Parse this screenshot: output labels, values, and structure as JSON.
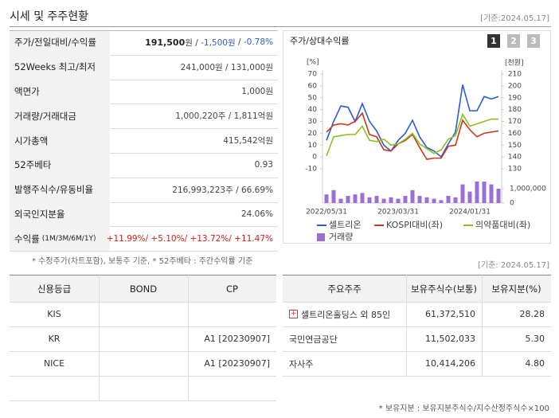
{
  "header": {
    "title": "시세 및 주주현황",
    "date": "[기준:2024.05.17]"
  },
  "summary": {
    "rows": [
      {
        "label": "주가/전일대비/수익률",
        "value": [
          "191,500",
          "원 / ",
          "-1,500원",
          " / ",
          "-0.78%"
        ]
      },
      {
        "label": "52Weeks 최고/최저",
        "value": "241,000원 / 131,000원"
      },
      {
        "label": "액면가",
        "value": "1,000원"
      },
      {
        "label": "거래량/거래대금",
        "value": "1,000,220주 / 1,811억원"
      },
      {
        "label": "시가총액",
        "value": "415,542억원"
      },
      {
        "label": "52주베타",
        "value": "0.93"
      },
      {
        "label": "발행주식수/유동비율",
        "value": "216,993,223주 / 66.69%"
      },
      {
        "label": "외국인지분율",
        "value": "24.06%"
      },
      {
        "label": [
          "수익률",
          "(1M/3M/6M/1Y)"
        ],
        "value": "+11.99%/ +5.10%/ +13.72%/ +11.47%"
      }
    ],
    "note": "* 수정주가(차트포함), 보통주 기준, * 52주베타 : 주간수익률 기준"
  },
  "chart_data": {
    "type": "line",
    "title": "주가/상대수익률",
    "tabs": [
      "1",
      "2",
      "3"
    ],
    "ylabel": "[%]",
    "y2label": "[천원]",
    "categories": [
      "2022/05/31",
      null,
      null,
      null,
      null,
      null,
      null,
      null,
      null,
      null,
      "2023/03/31",
      null,
      null,
      null,
      null,
      null,
      null,
      null,
      null,
      null,
      "2024/01/31",
      null,
      null,
      null,
      null
    ],
    "ylim": [
      -10,
      70
    ],
    "yticks": [
      70,
      60,
      50,
      40,
      30,
      20,
      10,
      0,
      -10
    ],
    "y2lim": [
      130,
      210
    ],
    "y2ticks": [
      210,
      200,
      190,
      180,
      170,
      160,
      150,
      140,
      130
    ],
    "series": [
      {
        "name": "셀트리온",
        "color": "#2f5bd0",
        "axis": "y2",
        "values": [
          154,
          170,
          183,
          182,
          170,
          185,
          170,
          162,
          150,
          145,
          154,
          160,
          171,
          157,
          148,
          145,
          140,
          151,
          161,
          201,
          179,
          179,
          191,
          189,
          191
        ]
      },
      {
        "name": "KOSPI대비(좌)",
        "color": "#c8381e",
        "values": [
          21,
          27,
          28,
          27,
          30,
          37,
          19,
          17,
          6,
          5,
          11,
          14,
          19,
          8,
          -2,
          -1,
          -1,
          9,
          10,
          31,
          23,
          17,
          20,
          21,
          22
        ]
      },
      {
        "name": "의약품대비(좌)",
        "color": "#8cc020",
        "values": [
          1,
          17,
          18,
          19,
          19,
          26,
          14,
          13,
          15,
          10,
          11,
          15,
          20,
          11,
          7,
          3,
          6,
          15,
          18,
          36,
          26,
          28,
          30,
          32,
          32
        ]
      }
    ],
    "volume": {
      "name": "거래량",
      "color": "#9b6fd6",
      "values": [
        600000,
        900000,
        300000,
        500000,
        600000,
        700000,
        400000,
        500000,
        300000,
        400000,
        300000,
        500000,
        900000,
        500000,
        400000,
        300000,
        200000,
        500000,
        400000,
        1300000,
        800000,
        1500000,
        1500000,
        1300000,
        1000000
      ],
      "vlim": [
        0,
        1500000
      ],
      "vticks": [
        {
          "value": 1000000,
          "label": "1,000,000"
        },
        0
      ]
    }
  },
  "ratings": {
    "header": [
      "신용등급",
      "BOND",
      "CP"
    ],
    "rows": [
      [
        "KIS",
        null,
        null
      ],
      [
        "KR",
        null,
        "A1 [20230907]"
      ],
      [
        "NICE",
        null,
        "A1 [20230907]"
      ],
      [
        null,
        null,
        null
      ]
    ]
  },
  "holders": {
    "date": "[기준: 2024.05.17]",
    "header": [
      "주요주주",
      "보유주식수(보통)",
      "보유지분(%)"
    ],
    "rows": [
      [
        "셀트리온홀딩스 외 85인",
        "61,372,510",
        "28.28"
      ],
      [
        "국민연금공단",
        "11,502,033",
        "5.30"
      ],
      [
        "자사주",
        "10,414,206",
        "4.80"
      ]
    ],
    "note": "* 보유지분 : 보유지분주식수/지수산정주식수×100"
  }
}
